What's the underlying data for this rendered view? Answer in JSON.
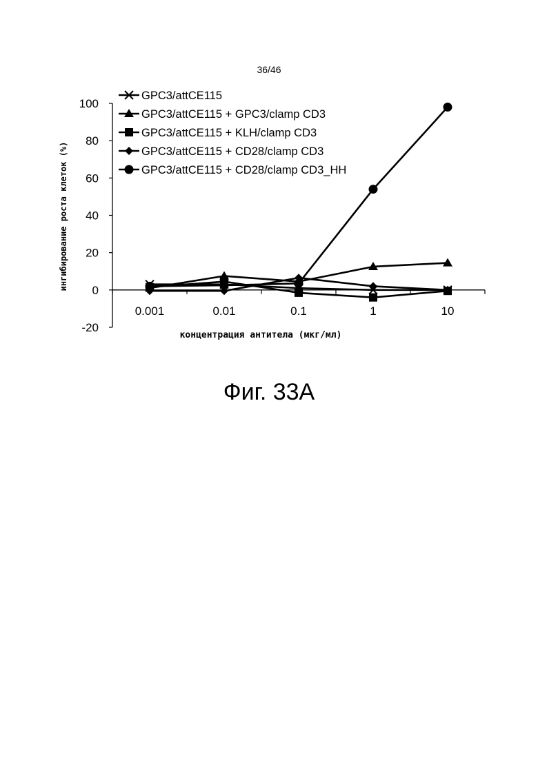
{
  "page": {
    "page_number": "36/46",
    "figure_caption": "Фиг. 33A"
  },
  "chart_data": {
    "type": "line",
    "xscale": "log",
    "x": [
      0.001,
      0.01,
      0.1,
      1,
      10
    ],
    "x_tick_labels": [
      "0.001",
      "0.01",
      "0.1",
      "1",
      "10"
    ],
    "ylim": [
      -20,
      100
    ],
    "y_ticks": [
      -20,
      0,
      20,
      40,
      60,
      80,
      100
    ],
    "xlabel": "концентрация антитела (мкг/мл)",
    "ylabel": "ингибирование роста клеток (%)",
    "legend_position": "top-left",
    "series": [
      {
        "name": "GPC3/attCE115",
        "marker": "x",
        "values": [
          3,
          3,
          1,
          0,
          0
        ]
      },
      {
        "name": "GPC3/attCE115 + GPC3/clamp CD3",
        "marker": "triangle",
        "values": [
          1,
          7.5,
          4.5,
          12.5,
          14.5
        ]
      },
      {
        "name": "GPC3/attCE115 + KLH/clamp CD3",
        "marker": "square",
        "values": [
          1.5,
          4.5,
          -1.5,
          -4,
          -0.5
        ]
      },
      {
        "name": "GPC3/attCE115 + CD28/clamp CD3",
        "marker": "diamond",
        "values": [
          -0.5,
          -0.5,
          6.5,
          2,
          0
        ]
      },
      {
        "name": "GPC3/attCE115 + CD28/clamp CD3_HH",
        "marker": "circle",
        "values": [
          2,
          2.5,
          3.5,
          54,
          98
        ]
      }
    ]
  }
}
